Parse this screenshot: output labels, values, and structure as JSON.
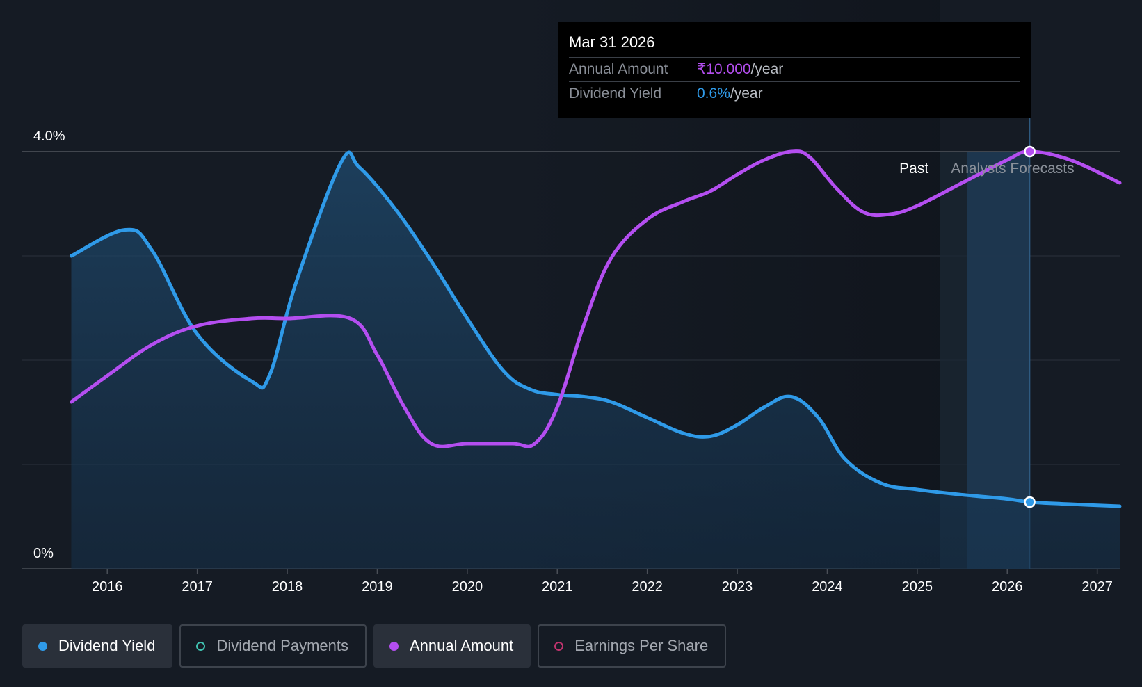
{
  "colors": {
    "background": "#151b24",
    "dividend_yield": "#2f9ae8",
    "annual_amount": "#b44ef0",
    "dividend_payments": "#3fc1b0",
    "earnings_per_share": "#c0336e"
  },
  "tooltip": {
    "date": "Mar 31 2026",
    "rows": [
      {
        "label": "Annual Amount",
        "value": "₹10.000",
        "unit": "/year"
      },
      {
        "label": "Dividend Yield",
        "value": "0.6%",
        "unit": "/year"
      }
    ]
  },
  "region_labels": {
    "past": "Past",
    "forecast": "Analysts Forecasts"
  },
  "legend": [
    {
      "label": "Dividend Yield",
      "icon": "filled-dot-icon",
      "active": true
    },
    {
      "label": "Dividend Payments",
      "icon": "ring-dot-icon",
      "active": false
    },
    {
      "label": "Annual Amount",
      "icon": "filled-dot-icon",
      "active": true
    },
    {
      "label": "Earnings Per Share",
      "icon": "ring-dot-icon",
      "active": false
    }
  ],
  "chart_data": {
    "type": "line",
    "x_ticks": [
      "2016",
      "2017",
      "2018",
      "2019",
      "2020",
      "2021",
      "2022",
      "2023",
      "2024",
      "2025",
      "2026",
      "2027"
    ],
    "y_ticks": [
      "0%",
      "4.0%"
    ],
    "ylim": [
      0,
      4.0
    ],
    "xlim": [
      2015.55,
      2027.25
    ],
    "grid": true,
    "past_forecast_boundary": 2025.25,
    "highlight_x": 2026.25,
    "series": [
      {
        "name": "Dividend Yield",
        "unit": "%",
        "area": true,
        "x": [
          2015.6,
          2016.2,
          2016.5,
          2017.0,
          2017.6,
          2017.8,
          2018.1,
          2018.6,
          2018.8,
          2019.2,
          2019.6,
          2020.0,
          2020.4,
          2020.7,
          2021.0,
          2021.3,
          2021.6,
          2022.0,
          2022.4,
          2022.7,
          2023.0,
          2023.3,
          2023.6,
          2023.9,
          2024.2,
          2024.6,
          2025.0,
          2025.5,
          2026.0,
          2026.25,
          2026.7,
          2027.25
        ],
        "y": [
          3.0,
          3.25,
          3.05,
          2.25,
          1.8,
          1.85,
          2.75,
          3.9,
          3.85,
          3.45,
          2.95,
          2.4,
          1.9,
          1.72,
          1.67,
          1.65,
          1.6,
          1.45,
          1.3,
          1.27,
          1.38,
          1.55,
          1.65,
          1.45,
          1.05,
          0.82,
          0.76,
          0.71,
          0.67,
          0.64,
          0.62,
          0.6
        ]
      },
      {
        "name": "Annual Amount",
        "unit": "₹",
        "area": false,
        "x": [
          2015.6,
          2016.0,
          2016.5,
          2017.0,
          2017.6,
          2018.0,
          2018.7,
          2019.0,
          2019.3,
          2019.6,
          2020.0,
          2020.5,
          2020.75,
          2021.0,
          2021.3,
          2021.6,
          2022.0,
          2022.4,
          2022.7,
          2023.0,
          2023.3,
          2023.6,
          2023.8,
          2024.1,
          2024.4,
          2024.7,
          2025.0,
          2025.5,
          2026.0,
          2026.25,
          2026.7,
          2027.25
        ],
        "y": [
          1.6,
          1.85,
          2.15,
          2.33,
          2.4,
          2.4,
          2.4,
          2.05,
          1.55,
          1.2,
          1.2,
          1.2,
          1.2,
          1.55,
          2.35,
          2.98,
          3.35,
          3.52,
          3.62,
          3.78,
          3.92,
          4.0,
          3.95,
          3.65,
          3.42,
          3.4,
          3.48,
          3.7,
          3.92,
          4.0,
          3.92,
          3.7
        ]
      }
    ]
  }
}
